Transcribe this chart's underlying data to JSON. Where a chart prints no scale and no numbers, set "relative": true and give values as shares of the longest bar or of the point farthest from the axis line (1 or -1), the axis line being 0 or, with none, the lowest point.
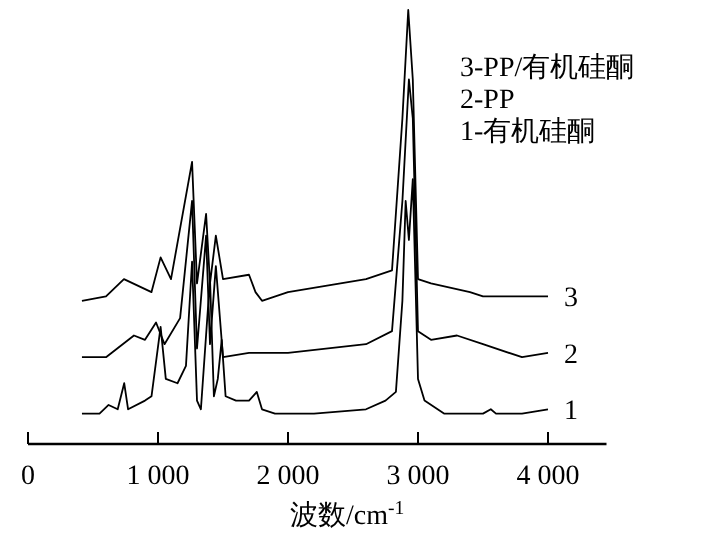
{
  "chart_data": {
    "type": "line",
    "relative": true,
    "xlabel": "波数/cm$^{-1}$",
    "xlim": [
      0,
      4450
    ],
    "xticks": [
      0,
      {
        "value": 1000,
        "label": "1 000"
      },
      {
        "value": 2000,
        "label": "2 000"
      },
      {
        "value": 3000,
        "label": "3 000"
      },
      {
        "value": 4000,
        "label": "4 000"
      }
    ],
    "tick_labels": "x",
    "grid": false,
    "annotations": [
      "3-PP/有机硅酮",
      "2-PP",
      "1-有机硅酮"
    ],
    "series": [
      {
        "name": "1",
        "color": "#000000",
        "x": [
          415,
          550,
          620,
          690,
          740,
          770,
          900,
          950,
          1020,
          1060,
          1150,
          1215,
          1262,
          1300,
          1330,
          1400,
          1430,
          1460,
          1490,
          1520,
          1600,
          1700,
          1760,
          1800,
          1900,
          2200,
          2600,
          2750,
          2830,
          2880,
          2905,
          2930,
          2960,
          3000,
          3050,
          3200,
          3500,
          3560,
          3600,
          3800,
          4000
        ],
        "values": [
          0.07,
          0.07,
          0.09,
          0.08,
          0.14,
          0.08,
          0.1,
          0.11,
          0.27,
          0.15,
          0.14,
          0.18,
          0.42,
          0.1,
          0.08,
          0.38,
          0.11,
          0.15,
          0.24,
          0.11,
          0.1,
          0.1,
          0.12,
          0.08,
          0.07,
          0.07,
          0.08,
          0.1,
          0.12,
          0.33,
          0.56,
          0.47,
          0.61,
          0.15,
          0.1,
          0.07,
          0.07,
          0.08,
          0.07,
          0.07,
          0.08
        ]
      },
      {
        "name": "2",
        "color": "#000000",
        "x": [
          415,
          600,
          815,
          900,
          985,
          1050,
          1170,
          1262,
          1300,
          1370,
          1400,
          1445,
          1500,
          1700,
          2000,
          2600,
          2800,
          2880,
          2930,
          2960,
          3000,
          3100,
          3300,
          3500,
          3800,
          4000
        ],
        "values": [
          0.2,
          0.2,
          0.25,
          0.24,
          0.28,
          0.23,
          0.29,
          0.56,
          0.22,
          0.48,
          0.23,
          0.41,
          0.2,
          0.21,
          0.21,
          0.23,
          0.26,
          0.56,
          0.84,
          0.75,
          0.26,
          0.24,
          0.25,
          0.23,
          0.2,
          0.21
        ]
      },
      {
        "name": "3",
        "color": "#000000",
        "x": [
          415,
          600,
          738,
          950,
          1020,
          1100,
          1262,
          1300,
          1370,
          1400,
          1445,
          1500,
          1700,
          1750,
          1800,
          2000,
          2600,
          2800,
          2880,
          2925,
          2960,
          3000,
          3100,
          3400,
          3500,
          4000
        ],
        "values": [
          0.33,
          0.34,
          0.38,
          0.35,
          0.43,
          0.38,
          0.65,
          0.37,
          0.53,
          0.37,
          0.48,
          0.38,
          0.39,
          0.35,
          0.33,
          0.35,
          0.38,
          0.4,
          0.75,
          1,
          0.84,
          0.38,
          0.37,
          0.35,
          0.34,
          0.34
        ]
      }
    ]
  }
}
